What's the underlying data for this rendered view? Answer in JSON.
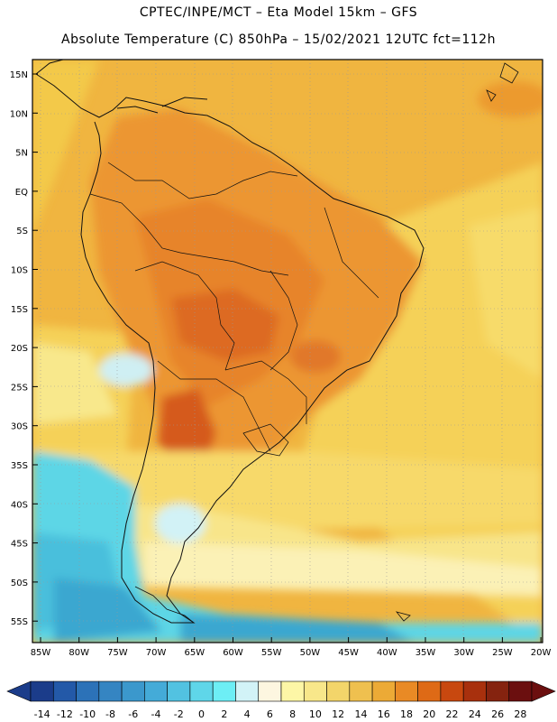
{
  "header": {
    "line1": "CPTEC/INPE/MCT –  Eta Model 15km – GFS",
    "line2": "Absolute Temperature (C) 850hPa – 15/02/2021 12UTC fct=112h"
  },
  "map": {
    "lat_labels": [
      "15N",
      "10N",
      "5N",
      "EQ",
      "5S",
      "10S",
      "15S",
      "20S",
      "25S",
      "30S",
      "35S",
      "40S",
      "45S",
      "50S",
      "55S"
    ],
    "lon_labels": [
      "85W",
      "80W",
      "75W",
      "70W",
      "65W",
      "60W",
      "55W",
      "50W",
      "45W",
      "40W",
      "35W",
      "30W",
      "25W",
      "20W"
    ],
    "dominant_colors": {
      "warm_ocean": "#f3c94a",
      "warm_land": "#f0a03b",
      "hot": "#dd6a23",
      "cold_water": "#5dd6e6",
      "very_cold": "#2fa6cf"
    }
  },
  "colorbar": {
    "labels": [
      "-14",
      "-12",
      "-10",
      "-8",
      "-6",
      "-4",
      "-2",
      "0",
      "2",
      "4",
      "6",
      "8",
      "10",
      "12",
      "14",
      "16",
      "18",
      "20",
      "22",
      "24",
      "26",
      "28"
    ],
    "colors": [
      "#1b3c8a",
      "#2359a8",
      "#2c72b8",
      "#3585c2",
      "#3b98cc",
      "#44abd8",
      "#52c2e1",
      "#5fd6e9",
      "#6deef5",
      "#d2f3f7",
      "#fdf6e0",
      "#fdf6a6",
      "#f8e78a",
      "#f3d56a",
      "#efc04f",
      "#ecaa36",
      "#e98a25",
      "#de6a16",
      "#c8480f",
      "#a8300d",
      "#85230f",
      "#6b0f0f"
    ]
  }
}
